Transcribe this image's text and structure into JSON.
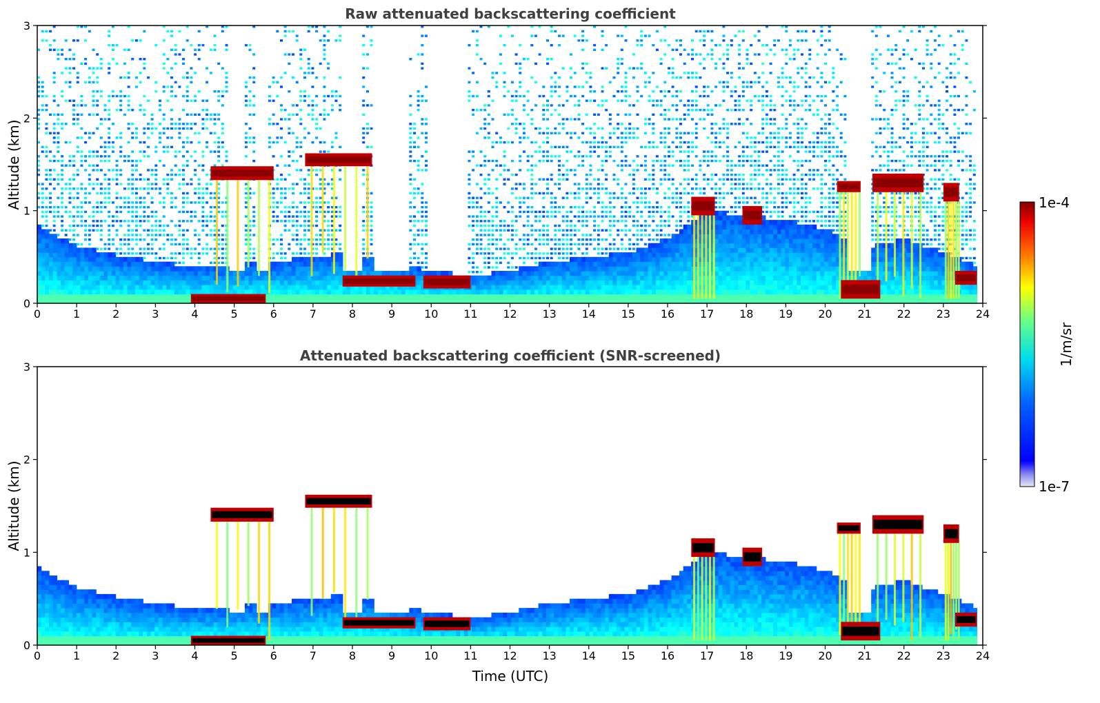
{
  "chart_data": [
    {
      "type": "heatmap",
      "title": "Raw attenuated backscattering coefficient",
      "xlabel": "",
      "ylabel": "Altitude (km)",
      "xlim": [
        0,
        24
      ],
      "ylim": [
        0,
        3
      ],
      "x_ticks": [
        "0",
        "1",
        "2",
        "3",
        "4",
        "5",
        "6",
        "7",
        "8",
        "9",
        "10",
        "11",
        "12",
        "13",
        "14",
        "15",
        "16",
        "17",
        "18",
        "19",
        "20",
        "21",
        "22",
        "23",
        "24"
      ],
      "y_ticks": [
        "0",
        "1",
        "2",
        "3"
      ],
      "screened": false,
      "data_end_hour": 23.85,
      "boundary_layer_top_km": [
        [
          0,
          0.85
        ],
        [
          1,
          0.62
        ],
        [
          2,
          0.52
        ],
        [
          3,
          0.45
        ],
        [
          4,
          0.4
        ],
        [
          5,
          0.42
        ],
        [
          6,
          0.45
        ],
        [
          7,
          0.5
        ],
        [
          8,
          0.55
        ],
        [
          9,
          0.45
        ],
        [
          10,
          0.35
        ],
        [
          11,
          0.3
        ],
        [
          12,
          0.35
        ],
        [
          13,
          0.45
        ],
        [
          14,
          0.5
        ],
        [
          15,
          0.55
        ],
        [
          16,
          0.7
        ],
        [
          17,
          1.0
        ],
        [
          18,
          0.95
        ],
        [
          19,
          0.9
        ],
        [
          20,
          0.8
        ],
        [
          21,
          0.6
        ],
        [
          22,
          0.7
        ],
        [
          23,
          0.55
        ],
        [
          23.85,
          0.4
        ]
      ],
      "cloud_layers": [
        {
          "t0": 4.4,
          "t1": 6.0,
          "base_km": 1.33,
          "top_km": 1.48,
          "value": "high"
        },
        {
          "t0": 6.8,
          "t1": 8.5,
          "base_km": 1.48,
          "top_km": 1.62,
          "value": "high"
        },
        {
          "t0": 7.75,
          "t1": 9.6,
          "base_km": 0.18,
          "top_km": 0.3,
          "value": "high"
        },
        {
          "t0": 9.8,
          "t1": 11.0,
          "base_km": 0.16,
          "top_km": 0.3,
          "value": "high"
        },
        {
          "t0": 16.6,
          "t1": 17.2,
          "base_km": 0.95,
          "top_km": 1.15,
          "value": "high"
        },
        {
          "t0": 17.9,
          "t1": 18.4,
          "base_km": 0.85,
          "top_km": 1.05,
          "value": "high"
        },
        {
          "t0": 20.3,
          "t1": 20.9,
          "base_km": 1.2,
          "top_km": 1.32,
          "value": "high"
        },
        {
          "t0": 20.4,
          "t1": 21.4,
          "base_km": 0.05,
          "top_km": 0.25,
          "value": "high"
        },
        {
          "t0": 21.2,
          "t1": 22.5,
          "base_km": 1.2,
          "top_km": 1.4,
          "value": "high"
        },
        {
          "t0": 23.0,
          "t1": 23.4,
          "base_km": 1.1,
          "top_km": 1.3,
          "value": "high"
        },
        {
          "t0": 23.3,
          "t1": 23.85,
          "base_km": 0.2,
          "top_km": 0.35,
          "value": "high"
        },
        {
          "t0": 3.9,
          "t1": 5.8,
          "base_km": 0.0,
          "top_km": 0.1,
          "value": "high"
        }
      ],
      "signal_gaps": [
        [
          4.9,
          5.3
        ],
        [
          5.6,
          5.85
        ],
        [
          7.8,
          8.2
        ],
        [
          8.5,
          9.4
        ],
        [
          9.9,
          10.9
        ],
        [
          20.55,
          21.2
        ]
      ]
    },
    {
      "type": "heatmap",
      "title": "Attenuated backscattering coefficient (SNR-screened)",
      "xlabel": "Time (UTC)",
      "ylabel": "Altitude (km)",
      "xlim": [
        0,
        24
      ],
      "ylim": [
        0,
        3
      ],
      "x_ticks": [
        "0",
        "1",
        "2",
        "3",
        "4",
        "5",
        "6",
        "7",
        "8",
        "9",
        "10",
        "11",
        "12",
        "13",
        "14",
        "15",
        "16",
        "17",
        "18",
        "19",
        "20",
        "21",
        "22",
        "23",
        "24"
      ],
      "y_ticks": [
        "0",
        "1",
        "2",
        "3"
      ],
      "screened": true,
      "data_end_hour": 23.85
    }
  ],
  "colorbar": {
    "label": "1/m/sr",
    "max_label": "1e-4",
    "min_label": "1e-7",
    "colormap": "jet",
    "low_colors": [
      "#e6e6f5",
      "#aaaaf0",
      "#7070f0",
      "#0000ff"
    ]
  }
}
